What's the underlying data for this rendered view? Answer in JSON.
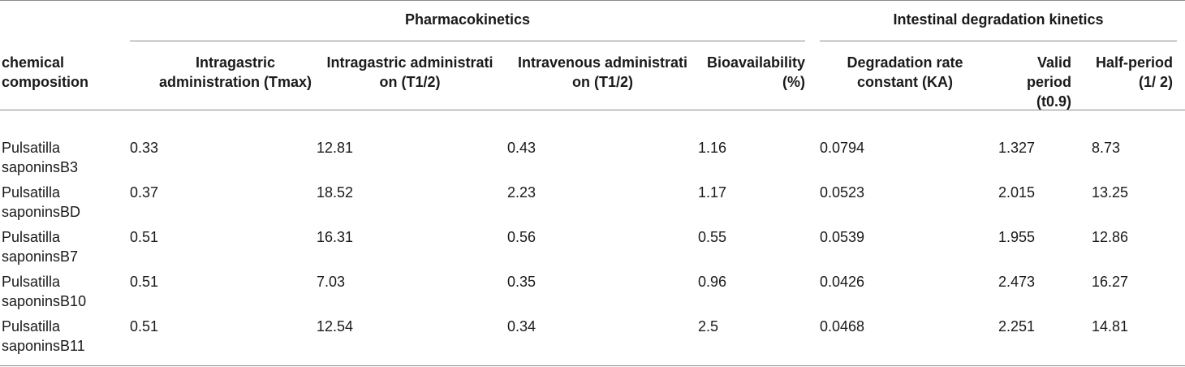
{
  "groups": {
    "pharmacokinetics": "Pharmacokinetics",
    "intestinal": "Intestinal degradation kinetics"
  },
  "headers": {
    "composition": "chemical composition",
    "tmax": "Intragastric administration (Tmax)",
    "ig_t12": "Intragastric administrati on (T1/2)",
    "iv_t12": "Intravenous administrati on (T1/2)",
    "bioavailability": "Bioavailability (%)",
    "ka": "Degradation rate constant (KA)",
    "valid": "Valid period (t0.9)",
    "half": "Half-period (1/ 2)"
  },
  "rows": [
    {
      "composition": "Pulsatilla saponinsB3",
      "tmax": "0.33",
      "ig_t12": "12.81",
      "iv_t12": "0.43",
      "bioavailability": "1.16",
      "ka": "0.0794",
      "valid": "1.327",
      "half": "8.73"
    },
    {
      "composition": "Pulsatilla saponinsBD",
      "tmax": "0.37",
      "ig_t12": "18.52",
      "iv_t12": "2.23",
      "bioavailability": "1.17",
      "ka": "0.0523",
      "valid": "2.015",
      "half": "13.25"
    },
    {
      "composition": "Pulsatilla saponinsB7",
      "tmax": "0.51",
      "ig_t12": "16.31",
      "iv_t12": "0.56",
      "bioavailability": "0.55",
      "ka": "0.0539",
      "valid": "1.955",
      "half": "12.86"
    },
    {
      "composition": "Pulsatilla saponinsB10",
      "tmax": "0.51",
      "ig_t12": "7.03",
      "iv_t12": "0.35",
      "bioavailability": "0.96",
      "ka": "0.0426",
      "valid": "2.473",
      "half": "16.27"
    },
    {
      "composition": "Pulsatilla saponinsB11",
      "tmax": "0.51",
      "ig_t12": "12.54",
      "iv_t12": "0.34",
      "bioavailability": "2.5",
      "ka": "0.0468",
      "valid": "2.251",
      "half": "14.81"
    }
  ]
}
